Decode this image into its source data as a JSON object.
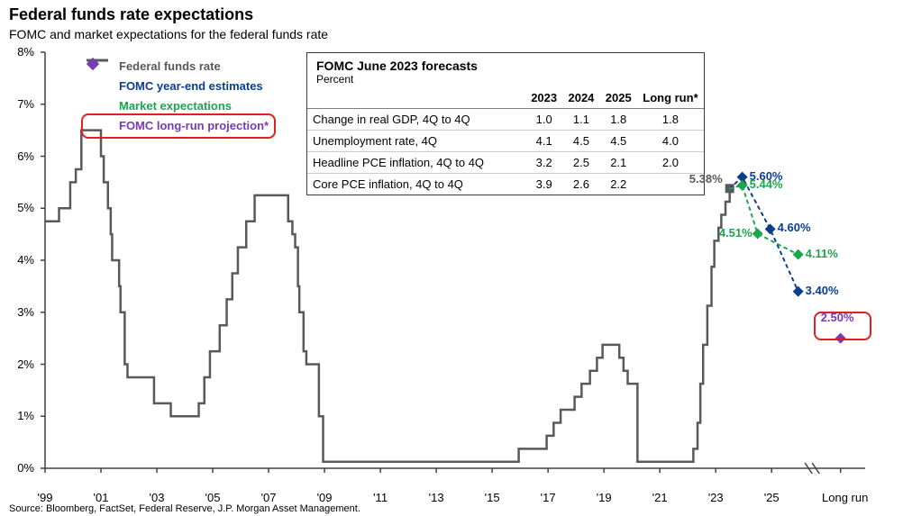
{
  "title": "Federal funds rate expectations",
  "subtitle": "FOMC and market expectations for the federal funds rate",
  "source": "Source: Bloomberg, FactSet, Federal Reserve, J.P. Morgan Asset Management.",
  "chart": {
    "type": "line+markers",
    "background_color": "#ffffff",
    "axis_color": "#404040",
    "axis_width": 1.5,
    "fed_line_color": "#595959",
    "fed_line_width": 2.5,
    "ylim": [
      0,
      8
    ],
    "ytick_step": 1,
    "y_ticks": [
      "0%",
      "1%",
      "2%",
      "3%",
      "4%",
      "5%",
      "6%",
      "7%",
      "8%"
    ],
    "x_year_min": 1999,
    "x_year_max": 2026,
    "x_year_longrun_pad": 1.0,
    "x_ticks": [
      {
        "year": 1999,
        "label": "'99"
      },
      {
        "year": 2001,
        "label": "'01"
      },
      {
        "year": 2003,
        "label": "'03"
      },
      {
        "year": 2005,
        "label": "'05"
      },
      {
        "year": 2007,
        "label": "'07"
      },
      {
        "year": 2009,
        "label": "'09"
      },
      {
        "year": 2011,
        "label": "'11"
      },
      {
        "year": 2013,
        "label": "'13"
      },
      {
        "year": 2015,
        "label": "'15"
      },
      {
        "year": 2017,
        "label": "'17"
      },
      {
        "year": 2019,
        "label": "'19"
      },
      {
        "year": 2021,
        "label": "'21"
      },
      {
        "year": 2023,
        "label": "'23"
      },
      {
        "year": 2025,
        "label": "'25"
      }
    ],
    "x_longrun_label": "Long run",
    "legend": {
      "items": [
        {
          "name": "fed-funds-rate",
          "label": "Federal funds rate",
          "color": "#595959",
          "marker": "line"
        },
        {
          "name": "fomc-year-end",
          "label": "FOMC year-end estimates",
          "color": "#0a3e8f",
          "marker": "diamond"
        },
        {
          "name": "market-expectations",
          "label": "Market expectations",
          "color": "#1aa64a",
          "marker": "diamond"
        },
        {
          "name": "fomc-long-run",
          "label": "FOMC long-run projection*",
          "color": "#7b3ab5",
          "marker": "diamond",
          "highlight": true
        }
      ]
    },
    "fed_funds_series": [
      [
        1999.0,
        4.75
      ],
      [
        1999.5,
        5.0
      ],
      [
        1999.9,
        5.5
      ],
      [
        2000.1,
        5.75
      ],
      [
        2000.3,
        6.5
      ],
      [
        2000.9,
        6.5
      ],
      [
        2001.0,
        6.0
      ],
      [
        2001.1,
        5.5
      ],
      [
        2001.25,
        5.0
      ],
      [
        2001.35,
        4.5
      ],
      [
        2001.4,
        4.0
      ],
      [
        2001.65,
        3.5
      ],
      [
        2001.7,
        3.0
      ],
      [
        2001.85,
        2.0
      ],
      [
        2001.95,
        1.75
      ],
      [
        2002.9,
        1.25
      ],
      [
        2003.5,
        1.0
      ],
      [
        2004.5,
        1.25
      ],
      [
        2004.7,
        1.75
      ],
      [
        2004.9,
        2.25
      ],
      [
        2005.25,
        2.75
      ],
      [
        2005.5,
        3.25
      ],
      [
        2005.7,
        3.75
      ],
      [
        2005.9,
        4.25
      ],
      [
        2006.2,
        4.75
      ],
      [
        2006.5,
        5.25
      ],
      [
        2007.7,
        4.75
      ],
      [
        2007.85,
        4.5
      ],
      [
        2007.95,
        4.25
      ],
      [
        2008.05,
        3.5
      ],
      [
        2008.1,
        3.0
      ],
      [
        2008.25,
        2.25
      ],
      [
        2008.35,
        2.0
      ],
      [
        2008.8,
        1.0
      ],
      [
        2008.95,
        0.125
      ],
      [
        2015.95,
        0.375
      ],
      [
        2016.95,
        0.625
      ],
      [
        2017.2,
        0.875
      ],
      [
        2017.45,
        1.125
      ],
      [
        2017.95,
        1.375
      ],
      [
        2018.2,
        1.625
      ],
      [
        2018.5,
        1.875
      ],
      [
        2018.75,
        2.125
      ],
      [
        2018.95,
        2.375
      ],
      [
        2019.55,
        2.125
      ],
      [
        2019.7,
        1.875
      ],
      [
        2019.85,
        1.625
      ],
      [
        2020.2,
        0.125
      ],
      [
        2022.2,
        0.375
      ],
      [
        2022.35,
        0.875
      ],
      [
        2022.45,
        1.625
      ],
      [
        2022.55,
        2.375
      ],
      [
        2022.7,
        3.125
      ],
      [
        2022.85,
        3.875
      ],
      [
        2022.95,
        4.375
      ],
      [
        2023.1,
        4.625
      ],
      [
        2023.2,
        4.875
      ],
      [
        2023.35,
        5.125
      ],
      [
        2023.5,
        5.375
      ]
    ],
    "current_point": {
      "year": 2023.5,
      "value": 5.38,
      "label": "5.38%",
      "color": "#595959",
      "marker": "square"
    },
    "fomc_estimates": {
      "color": "#0a3e8f",
      "dotted_line_color": "#0a3e8f",
      "points": [
        {
          "year": 2023.95,
          "value": 5.6,
          "label": "5.60%"
        },
        {
          "year": 2024.95,
          "value": 4.6,
          "label": "4.60%"
        },
        {
          "year": 2025.95,
          "value": 3.4,
          "label": "3.40%"
        }
      ]
    },
    "market_expectations": {
      "color": "#1aa64a",
      "dotted_line_color": "#1aa64a",
      "points": [
        {
          "year": 2023.95,
          "value": 5.44,
          "label": "5.44%"
        },
        {
          "year": 2024.5,
          "value": 4.51,
          "label": "4.51%",
          "label_side": "left"
        },
        {
          "year": 2025.95,
          "value": 4.11,
          "label": "4.11%"
        }
      ]
    },
    "fomc_longrun": {
      "color": "#7b3ab5",
      "point": {
        "x_longrun": true,
        "value": 2.5,
        "label": "2.50%",
        "highlight": true
      }
    }
  },
  "forecast_table": {
    "title": "FOMC June 2023 forecasts",
    "unit": "Percent",
    "columns": [
      "",
      "2023",
      "2024",
      "2025",
      "Long run*"
    ],
    "rows": [
      [
        "Change in real GDP, 4Q to 4Q",
        "1.0",
        "1.1",
        "1.8",
        "1.8"
      ],
      [
        "Unemployment rate, 4Q",
        "4.1",
        "4.5",
        "4.5",
        "4.0"
      ],
      [
        "Headline PCE inflation, 4Q to 4Q",
        "3.2",
        "2.5",
        "2.1",
        "2.0"
      ],
      [
        "Core PCE inflation, 4Q to 4Q",
        "3.9",
        "2.6",
        "2.2",
        ""
      ]
    ]
  }
}
